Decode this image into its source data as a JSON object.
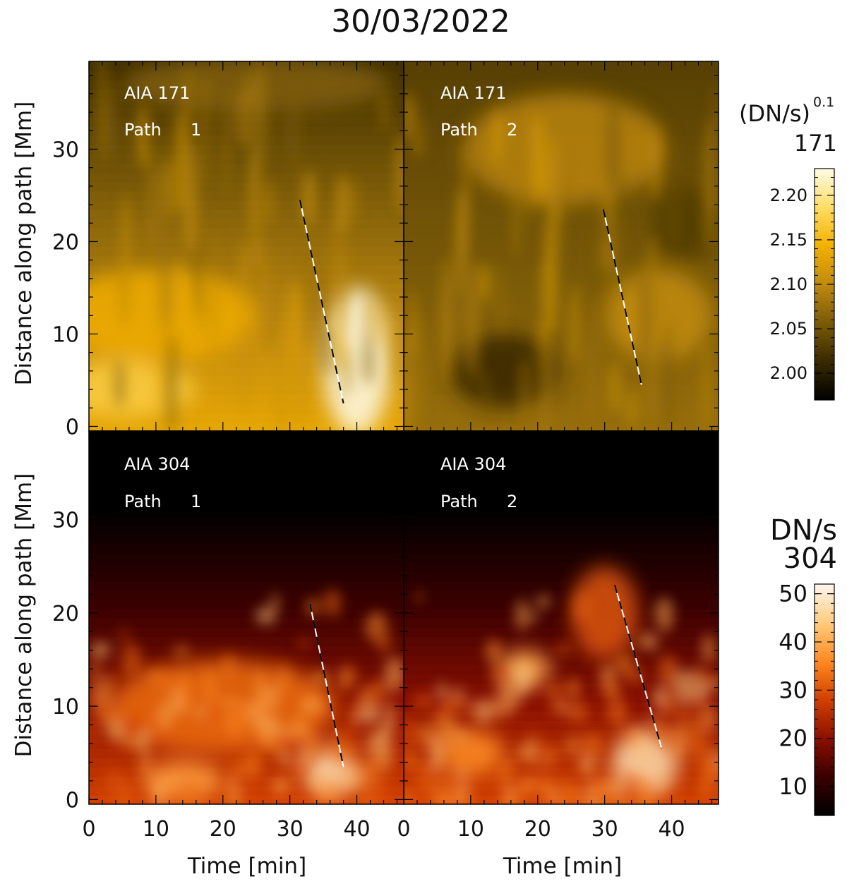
{
  "figure": {
    "title": "30/03/2022"
  },
  "colorbars": {
    "aia171": {
      "label_line1": "(DN/s)",
      "label_exponent": "0.1",
      "label_line2": "171",
      "range": [
        1.97,
        2.23
      ],
      "ticks": [
        "2.00",
        "2.05",
        "2.10",
        "2.15",
        "2.20"
      ],
      "tick_values": [
        2.0,
        2.05,
        2.1,
        2.15,
        2.2
      ],
      "colormap": [
        "#000000",
        "#3a2a00",
        "#7a5a08",
        "#c08a10",
        "#f3b000",
        "#ffdd66",
        "#fffbe6"
      ]
    },
    "aia304": {
      "label_line1": "DN/s",
      "label_line2": "304",
      "range": [
        4,
        52
      ],
      "ticks": [
        "10",
        "20",
        "30",
        "40",
        "50"
      ],
      "tick_values": [
        10,
        20,
        30,
        40,
        50
      ],
      "colormap": [
        "#000000",
        "#3a0000",
        "#8a1000",
        "#d04000",
        "#ff8a20",
        "#ffcc80",
        "#fff5ee"
      ]
    }
  },
  "axes": {
    "ylabel": "Distance along path [Mm]",
    "xlabel": "Time [min]",
    "xticks": [
      "0",
      "10",
      "20",
      "30",
      "40"
    ],
    "xtick_values": [
      0,
      10,
      20,
      30,
      40
    ],
    "xlim": [
      0,
      47
    ],
    "yticks": [
      "0",
      "10",
      "20",
      "30"
    ],
    "ytick_values": [
      0,
      10,
      20,
      30
    ],
    "ylim": [
      -0.5,
      39.5
    ]
  },
  "chart_data": [
    {
      "type": "heatmap",
      "channel": "AIA 171",
      "label_top": "AIA 171",
      "label_bottom_word": "Path",
      "label_bottom_num": "1",
      "xlabel": "",
      "ylabel": "Distance along path [Mm]",
      "xlim": [
        0,
        47
      ],
      "ylim": [
        -0.5,
        39.5
      ],
      "colorbar": "aia171",
      "features": [
        {
          "x": 5,
          "y": 4,
          "w": 22,
          "h": 6,
          "v": 0.45
        },
        {
          "x": 40,
          "y": 7,
          "w": 10,
          "h": 16,
          "v": 0.9
        },
        {
          "x": 10,
          "y": 12,
          "w": 30,
          "h": 10,
          "v": 0.2
        },
        {
          "x": 25,
          "y": 37,
          "w": 40,
          "h": 6,
          "v": -0.4
        }
      ],
      "track": {
        "x": [
          31.5,
          38.0
        ],
        "y": [
          24.5,
          2.5
        ]
      }
    },
    {
      "type": "heatmap",
      "channel": "AIA 171",
      "label_top": "AIA 171",
      "label_bottom_word": "Path",
      "label_bottom_num": "2",
      "xlabel": "",
      "ylabel": "",
      "xlim": [
        0,
        47
      ],
      "ylim": [
        -0.5,
        39.5
      ],
      "colorbar": "aia171",
      "features": [
        {
          "x": 15,
          "y": 6,
          "w": 16,
          "h": 8,
          "v": -0.45
        },
        {
          "x": 38,
          "y": 12,
          "w": 16,
          "h": 10,
          "v": 0.25
        },
        {
          "x": 24,
          "y": 30,
          "w": 30,
          "h": 12,
          "v": 0.2
        },
        {
          "x": 42,
          "y": 22,
          "w": 10,
          "h": 8,
          "v": -0.3
        }
      ],
      "track": {
        "x": [
          29.8,
          35.5
        ],
        "y": [
          23.5,
          4.5
        ]
      }
    },
    {
      "type": "heatmap",
      "channel": "AIA 304",
      "label_top": "AIA 304",
      "label_bottom_word": "Path",
      "label_bottom_num": "1",
      "xlabel": "Time [min]",
      "ylabel": "Distance along path [Mm]",
      "xlim": [
        0,
        47
      ],
      "ylim": [
        -0.5,
        39.5
      ],
      "colorbar": "aia304",
      "features": [
        {
          "x": 36,
          "y": 3,
          "w": 8,
          "h": 5,
          "v": 0.9
        },
        {
          "x": 14,
          "y": 2,
          "w": 12,
          "h": 4,
          "v": 0.55
        },
        {
          "x": 20,
          "y": 10,
          "w": 34,
          "h": 10,
          "v": 0.3
        }
      ],
      "track": {
        "x": [
          33.0,
          38.0
        ],
        "y": [
          21.0,
          3.5
        ]
      }
    },
    {
      "type": "heatmap",
      "channel": "AIA 304",
      "label_top": "AIA 304",
      "label_bottom_word": "Path",
      "label_bottom_num": "2",
      "xlabel": "Time [min]",
      "ylabel": "",
      "xlim": [
        0,
        47
      ],
      "ylim": [
        -0.5,
        39.5
      ],
      "colorbar": "aia304",
      "features": [
        {
          "x": 36,
          "y": 4,
          "w": 10,
          "h": 7,
          "v": 0.9
        },
        {
          "x": 18,
          "y": 14,
          "w": 8,
          "h": 4,
          "v": 0.6
        },
        {
          "x": 10,
          "y": 5,
          "w": 10,
          "h": 5,
          "v": 0.45
        },
        {
          "x": 30,
          "y": 20,
          "w": 10,
          "h": 10,
          "v": 0.2
        }
      ],
      "track": {
        "x": [
          31.5,
          38.5
        ],
        "y": [
          23.0,
          5.5
        ]
      }
    }
  ]
}
